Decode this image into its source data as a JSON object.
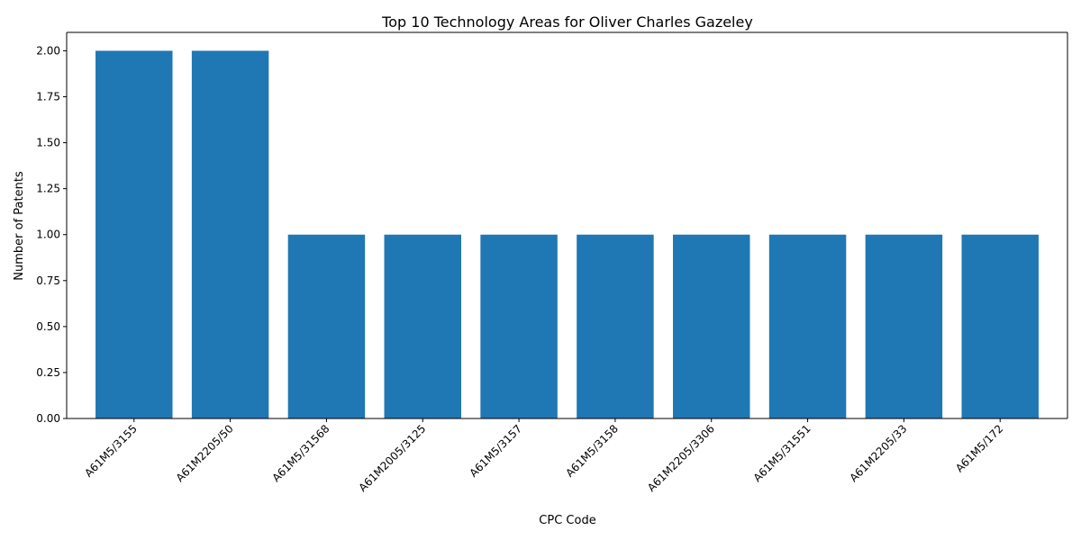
{
  "chart_data": {
    "type": "bar",
    "title": "Top 10 Technology Areas for Oliver Charles Gazeley",
    "xlabel": "CPC Code",
    "ylabel": "Number of Patents",
    "categories": [
      "A61M5/3155",
      "A61M2205/50",
      "A61M5/31568",
      "A61M2005/3125",
      "A61M5/3157",
      "A61M5/3158",
      "A61M2205/3306",
      "A61M5/31551",
      "A61M2205/33",
      "A61M5/172"
    ],
    "values": [
      2,
      2,
      1,
      1,
      1,
      1,
      1,
      1,
      1,
      1
    ],
    "ylim": [
      0,
      2.1
    ],
    "yticks": [
      "0.00",
      "0.25",
      "0.50",
      "0.75",
      "1.00",
      "1.25",
      "1.50",
      "1.75",
      "2.00"
    ],
    "grid": false,
    "bar_color": "#1f77b4"
  }
}
